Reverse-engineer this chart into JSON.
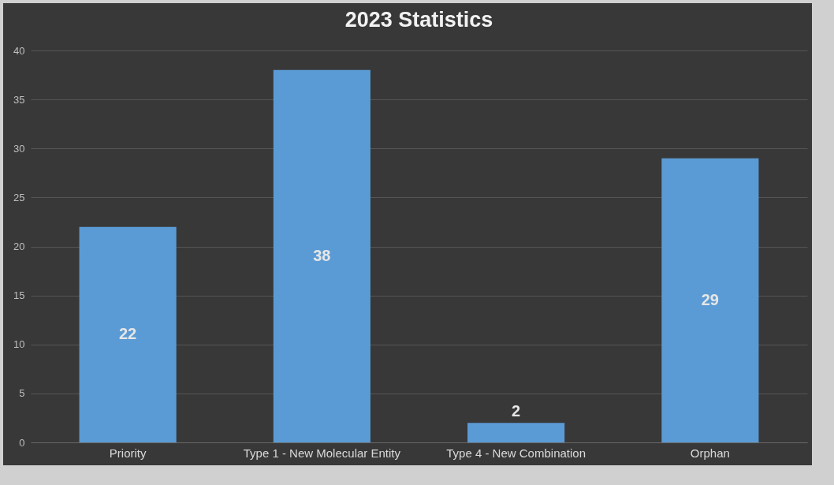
{
  "chart_data": {
    "type": "bar",
    "title": "2023 Statistics",
    "categories": [
      "Priority",
      "Type 1 - New Molecular Entity",
      "Type 4 - New Combination",
      "Orphan"
    ],
    "values": [
      22,
      38,
      2,
      29
    ],
    "color": "#5b9bd5",
    "ylim": [
      0,
      40
    ],
    "yticks": [
      0,
      5,
      10,
      15,
      20,
      25,
      30,
      35,
      40
    ],
    "grid": "y",
    "data_labels": true
  }
}
